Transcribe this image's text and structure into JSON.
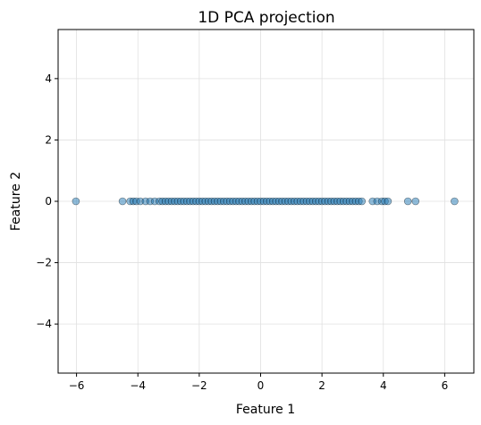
{
  "chart_data": {
    "type": "scatter",
    "title": "1D PCA projection",
    "xlabel": "Feature 1",
    "ylabel": "Feature 2",
    "xlim": [
      -6.6,
      6.95
    ],
    "ylim": [
      -5.6,
      5.6
    ],
    "xticks": [
      -6,
      -4,
      -2,
      0,
      2,
      4,
      6
    ],
    "yticks": [
      -4,
      -2,
      0,
      2,
      4
    ],
    "xtick_labels": [
      "−6",
      "−4",
      "−2",
      "0",
      "2",
      "4",
      "6"
    ],
    "ytick_labels": [
      "−4",
      "−2",
      "0",
      "2",
      "4"
    ],
    "grid": true,
    "marker_color": "#1f77b4",
    "marker_edge_color": "#000000",
    "marker_alpha": 0.5,
    "points": {
      "x": [
        -6.02,
        -4.5,
        -4.25,
        -4.15,
        -4.05,
        -3.92,
        -3.75,
        -3.6,
        -3.45,
        -3.3,
        -3.2,
        -3.1,
        -3.0,
        -2.9,
        -2.8,
        -2.7,
        -2.6,
        -2.5,
        -2.4,
        -2.3,
        -2.2,
        -2.1,
        -2.0,
        -1.9,
        -1.8,
        -1.7,
        -1.6,
        -1.5,
        -1.4,
        -1.3,
        -1.2,
        -1.1,
        -1.0,
        -0.9,
        -0.8,
        -0.7,
        -0.6,
        -0.5,
        -0.4,
        -0.3,
        -0.2,
        -0.1,
        0.0,
        0.1,
        0.2,
        0.3,
        0.4,
        0.5,
        0.6,
        0.7,
        0.8,
        0.9,
        1.0,
        1.1,
        1.2,
        1.3,
        1.4,
        1.5,
        1.6,
        1.7,
        1.8,
        1.9,
        2.0,
        2.1,
        2.2,
        2.3,
        2.4,
        2.5,
        2.6,
        2.7,
        2.8,
        2.9,
        3.0,
        3.1,
        3.2,
        3.3,
        3.65,
        3.8,
        3.95,
        4.05,
        4.15,
        4.8,
        5.05,
        6.32
      ],
      "y": [
        0,
        0,
        0,
        0,
        0,
        0,
        0,
        0,
        0,
        0,
        0,
        0,
        0,
        0,
        0,
        0,
        0,
        0,
        0,
        0,
        0,
        0,
        0,
        0,
        0,
        0,
        0,
        0,
        0,
        0,
        0,
        0,
        0,
        0,
        0,
        0,
        0,
        0,
        0,
        0,
        0,
        0,
        0,
        0,
        0,
        0,
        0,
        0,
        0,
        0,
        0,
        0,
        0,
        0,
        0,
        0,
        0,
        0,
        0,
        0,
        0,
        0,
        0,
        0,
        0,
        0,
        0,
        0,
        0,
        0,
        0,
        0,
        0,
        0,
        0,
        0,
        0,
        0,
        0,
        0,
        0,
        0,
        0,
        0
      ]
    }
  }
}
